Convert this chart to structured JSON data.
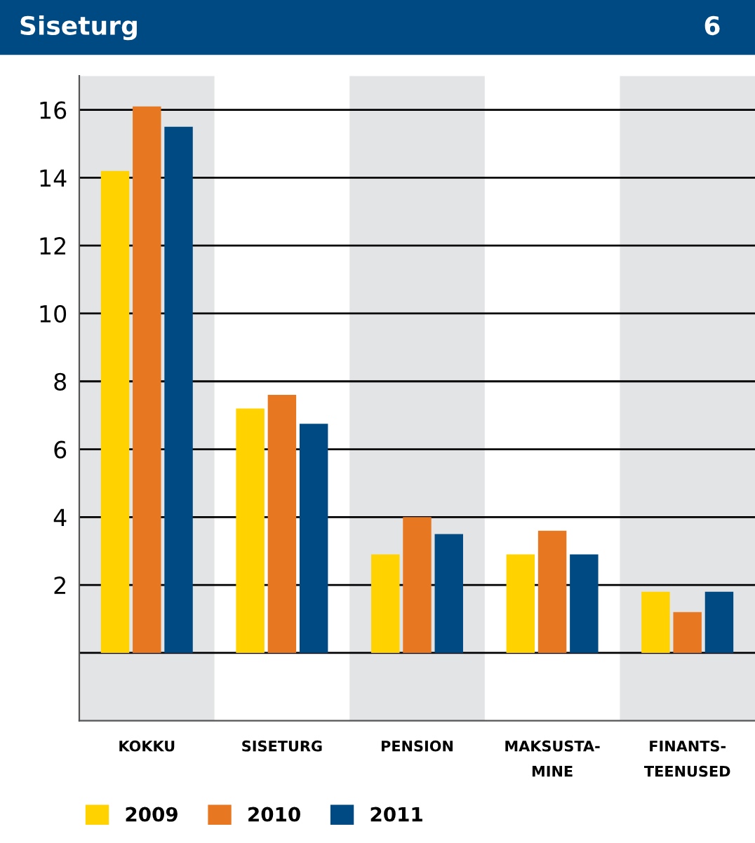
{
  "chart_data": {
    "type": "bar",
    "title": "Siseturg",
    "annotations": [
      "6"
    ],
    "categories": [
      "KOKKU",
      "SISETURG",
      "PENSION",
      "MAKSUSTA-\nMINE",
      "FINANTS-\nTEENUSED"
    ],
    "series": [
      {
        "name": "2009",
        "color": "#ffd200",
        "values": [
          14.2,
          7.2,
          2.9,
          2.9,
          1.8
        ]
      },
      {
        "name": "2010",
        "color": "#e87722",
        "values": [
          16.1,
          7.6,
          4.0,
          3.6,
          1.2
        ]
      },
      {
        "name": "2011",
        "color": "#004a84",
        "values": [
          15.5,
          6.75,
          3.5,
          2.9,
          1.8
        ]
      }
    ],
    "ylim": [
      -2,
      17
    ],
    "yticks": [
      {
        "value": 0,
        "label": null
      },
      2,
      4,
      6,
      8,
      10,
      12,
      14,
      16
    ],
    "grid": "y",
    "legend": "bottom left"
  }
}
